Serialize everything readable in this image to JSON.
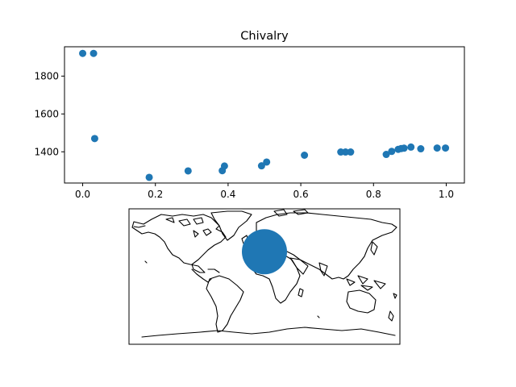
{
  "chart_data": [
    {
      "type": "scatter",
      "title": "Chivalry",
      "xlabel": "",
      "ylabel": "",
      "xlim": [
        -0.05,
        1.05
      ],
      "ylim": [
        1235,
        1955
      ],
      "xticks": [
        0.0,
        0.2,
        0.4,
        0.6,
        0.8,
        1.0
      ],
      "xtick_labels": [
        "0.0",
        "0.2",
        "0.4",
        "0.6",
        "0.8",
        "1.0"
      ],
      "yticks": [
        1400,
        1600,
        1800
      ],
      "ytick_labels": [
        "1400",
        "1600",
        "1800"
      ],
      "grid": false,
      "color": "#1f77b4",
      "points": [
        {
          "x": 0.0,
          "y": 1920
        },
        {
          "x": 0.03,
          "y": 1920
        },
        {
          "x": 0.033,
          "y": 1470
        },
        {
          "x": 0.183,
          "y": 1265
        },
        {
          "x": 0.29,
          "y": 1299
        },
        {
          "x": 0.384,
          "y": 1300
        },
        {
          "x": 0.39,
          "y": 1325
        },
        {
          "x": 0.492,
          "y": 1326
        },
        {
          "x": 0.506,
          "y": 1346
        },
        {
          "x": 0.61,
          "y": 1382
        },
        {
          "x": 0.71,
          "y": 1399
        },
        {
          "x": 0.723,
          "y": 1399
        },
        {
          "x": 0.737,
          "y": 1399
        },
        {
          "x": 0.835,
          "y": 1386
        },
        {
          "x": 0.85,
          "y": 1402
        },
        {
          "x": 0.868,
          "y": 1413
        },
        {
          "x": 0.876,
          "y": 1417
        },
        {
          "x": 0.884,
          "y": 1419
        },
        {
          "x": 0.903,
          "y": 1425
        },
        {
          "x": 0.93,
          "y": 1416
        },
        {
          "x": 0.975,
          "y": 1420
        },
        {
          "x": 0.998,
          "y": 1420
        }
      ]
    },
    {
      "type": "map",
      "projection": "equirectangular",
      "extent": {
        "lon": [
          -180,
          180
        ],
        "lat": [
          -90,
          90
        ]
      },
      "marker": {
        "lon": 0,
        "lat": 33,
        "radius_deg": 30,
        "color": "#1f77b4"
      }
    }
  ]
}
